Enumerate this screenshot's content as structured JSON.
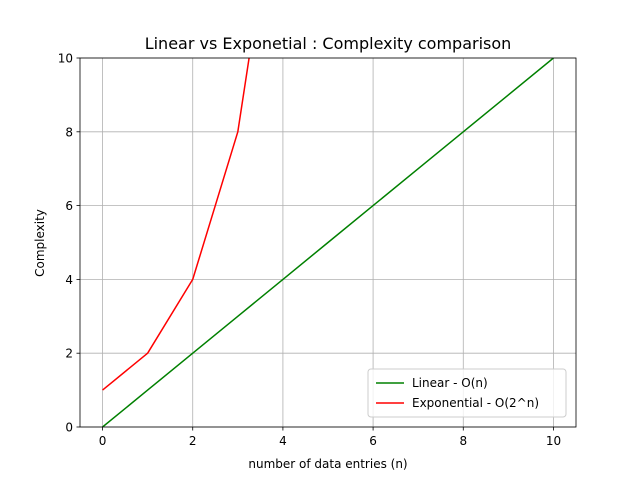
{
  "chart_data": {
    "type": "line",
    "title": "Linear vs Exponetial : Complexity comparison",
    "xlabel": "number of data entries (n)",
    "ylabel": "Complexity",
    "xlim": [
      -0.5,
      10.5
    ],
    "ylim": [
      0,
      10
    ],
    "xticks": [
      0,
      2,
      4,
      6,
      8,
      10
    ],
    "yticks": [
      0,
      2,
      4,
      6,
      8,
      10
    ],
    "grid": true,
    "legend_position": "lower-right",
    "series": [
      {
        "name": "Linear - O(n)",
        "color": "#008000",
        "x": [
          0,
          1,
          2,
          3,
          4,
          5,
          6,
          7,
          8,
          9,
          10
        ],
        "y": [
          0,
          1,
          2,
          3,
          4,
          5,
          6,
          7,
          8,
          9,
          10
        ]
      },
      {
        "name": "Exponential - O(2^n)",
        "color": "#ff0000",
        "x": [
          0,
          1,
          2,
          3,
          4
        ],
        "y": [
          1,
          2,
          4,
          8,
          16
        ]
      }
    ]
  }
}
